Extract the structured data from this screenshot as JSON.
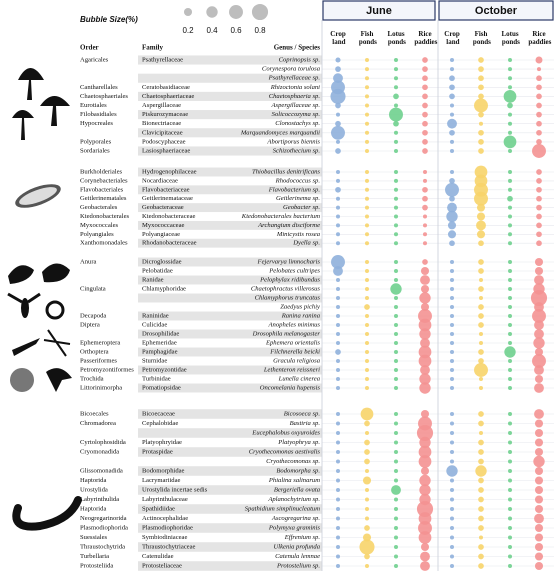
{
  "chart_data": {
    "type": "bubble",
    "legend": {
      "title": "Bubble Size(%)",
      "sizes": [
        0.2,
        0.4,
        0.6,
        0.8
      ],
      "color": "#bdbdbd"
    },
    "headers": {
      "order": "Order",
      "family": "Family",
      "species": "Genus / Species"
    },
    "months": [
      {
        "name": "June",
        "columns": [
          "Crop land",
          "Fish ponds",
          "Lotus ponds",
          "Rice paddies"
        ]
      },
      {
        "name": "October",
        "columns": [
          "Crop land",
          "Fish ponds",
          "Lotus ponds",
          "Rice paddies"
        ]
      }
    ],
    "colors": [
      "#8fb0dc",
      "#f7d46a",
      "#6fd08e",
      "#f49292"
    ],
    "groups": [
      {
        "rows": [
          {
            "order": "Agaricales",
            "family": "Psathyrellaceae",
            "species": "Coprinopsis sp.",
            "values": [
              0.08,
              0.05,
              0.05,
              0.1,
              0.05,
              0.1,
              0.05,
              0.15
            ]
          },
          {
            "order": null,
            "family": null,
            "species": "Corynespora torulosa",
            "values": [
              0.1,
              0.05,
              0.05,
              0.1,
              0.05,
              0.1,
              0.05,
              0.05
            ]
          },
          {
            "order": null,
            "family": null,
            "species": "Psathyrellaceae sp.",
            "values": [
              0.3,
              0.05,
              0.05,
              0.1,
              0.1,
              0.1,
              0.05,
              0.1
            ]
          },
          {
            "order": "Cantharellales",
            "family": "Ceratobasidiaceae",
            "species": "Rhizoctonia solani",
            "values": [
              0.6,
              0.05,
              0.05,
              0.1,
              0.1,
              0.1,
              0.05,
              0.1
            ]
          },
          {
            "order": "Chaetosphaeriales",
            "family": "Chaetosphaeriaceae",
            "species": "Chaetosphaeria sp.",
            "values": [
              0.7,
              0.05,
              0.1,
              0.1,
              0.1,
              0.1,
              0.5,
              0.1
            ]
          },
          {
            "order": "Eurotiales",
            "family": "Aspergillaceae",
            "species": "Aspergillaceae sp.",
            "values": [
              0.1,
              0.05,
              0.05,
              0.1,
              0.05,
              0.6,
              0.1,
              0.1
            ]
          },
          {
            "order": "Filobasidiales",
            "family": "Piskurozymaceae",
            "species": "Solicoccozyma sp.",
            "values": [
              0.05,
              0.05,
              0.6,
              0.1,
              0.05,
              0.1,
              0.05,
              0.1
            ]
          },
          {
            "order": "Hypocreales",
            "family": "Bionectriaceae",
            "species": "Clonostachys sp.",
            "values": [
              0.1,
              0.05,
              0.1,
              0.1,
              0.3,
              0.05,
              0.05,
              0.1
            ]
          },
          {
            "order": null,
            "family": "Clavicipitaceae",
            "species": "Marquandomyces marquandii",
            "values": [
              0.6,
              0.05,
              0.05,
              0.1,
              0.1,
              0.1,
              0.05,
              0.1
            ]
          },
          {
            "order": "Polyporales",
            "family": "Podoscyphaceae",
            "species": "Abortiporus biennis",
            "values": [
              0.05,
              0.05,
              0.05,
              0.1,
              0.05,
              0.1,
              0.5,
              0.1
            ]
          },
          {
            "order": "Sordariales",
            "family": "Lasiosphaeriaceae",
            "species": "Schizothecium sp.",
            "values": [
              0.1,
              0.05,
              0.05,
              0.1,
              0.05,
              0.1,
              0.05,
              0.6
            ]
          }
        ]
      },
      {
        "rows": [
          {
            "order": "Burkholderiales",
            "family": "Hydrogenophilaceae",
            "species": "Thiobacillus denitrificans",
            "values": [
              0.05,
              0.05,
              0.05,
              0.05,
              0.05,
              0.5,
              0.05,
              0.1
            ]
          },
          {
            "order": "Corynebacteriales",
            "family": "Nocardiaceae",
            "species": "Rhodococcus sp.",
            "values": [
              0.05,
              0.05,
              0.05,
              0.05,
              0.1,
              0.5,
              0.05,
              0.1
            ]
          },
          {
            "order": "Flavobacteriales",
            "family": "Flavobacteriaceae",
            "species": "Flavobacterium sp.",
            "values": [
              0.1,
              0.05,
              0.05,
              0.1,
              0.6,
              0.6,
              0.05,
              0.1
            ]
          },
          {
            "order": "Geitlerinematales",
            "family": "Geitlerinemataceae",
            "species": "Geitlerinema sp.",
            "values": [
              0.05,
              0.05,
              0.05,
              0.1,
              0.1,
              0.6,
              0.1,
              0.1
            ]
          },
          {
            "order": "Geobacterales",
            "family": "Geobacteraceae",
            "species": "Geobacter sp.",
            "values": [
              0.05,
              0.05,
              0.05,
              0.1,
              0.3,
              0.2,
              0.05,
              0.1
            ]
          },
          {
            "order": "Ktedonobacterales",
            "family": "Ktedonobacteraceae",
            "species": "Ktedonobacterales bacterium",
            "values": [
              0.05,
              0.05,
              0.05,
              0.05,
              0.4,
              0.2,
              0.05,
              0.1
            ]
          },
          {
            "order": "Myxococcales",
            "family": "Myxococcaceae",
            "species": "Archangium disciforme",
            "values": [
              0.05,
              0.05,
              0.05,
              0.05,
              0.2,
              0.3,
              0.05,
              0.1
            ]
          },
          {
            "order": "Polyangiales",
            "family": "Polyangiaceae",
            "species": "Minicystis rosea",
            "values": [
              0.05,
              0.05,
              0.05,
              0.05,
              0.2,
              0.2,
              0.05,
              0.1
            ]
          },
          {
            "order": "Xanthomonadales",
            "family": "Rhodanobacteraceae",
            "species": "Dyella sp.",
            "values": [
              0.05,
              0.05,
              0.05,
              0.05,
              0.1,
              0.1,
              0.05,
              0.1
            ]
          }
        ]
      },
      {
        "rows": [
          {
            "order": "Anura",
            "family": "Dicroglossidae",
            "species": "Fejervarya limnocharis",
            "values": [
              0.6,
              0.05,
              0.05,
              0.1,
              0.05,
              0.1,
              0.05,
              0.2
            ]
          },
          {
            "order": null,
            "family": "Pelobatidae",
            "species": "Pelobates cultripes",
            "values": [
              0.3,
              0.05,
              0.05,
              0.2,
              0.05,
              0.1,
              0.05,
              0.2
            ]
          },
          {
            "order": null,
            "family": "Ranidae",
            "species": "Pelophylax ridibundus",
            "values": [
              0.05,
              0.05,
              0.05,
              0.3,
              0.05,
              0.05,
              0.05,
              0.3
            ]
          },
          {
            "order": "Cingulata",
            "family": "Chlamyphoridae",
            "species": "Chaetophractus villerosus",
            "values": [
              0.05,
              0.05,
              0.4,
              0.2,
              0.05,
              0.1,
              0.05,
              0.4
            ]
          },
          {
            "order": null,
            "family": null,
            "species": "Chlamyphorus truncatus",
            "values": [
              0.05,
              0.05,
              0.05,
              0.4,
              0.05,
              0.05,
              0.05,
              0.8
            ]
          },
          {
            "order": null,
            "family": null,
            "species": "Zaedyus pichiy",
            "values": [
              0.05,
              0.1,
              0.05,
              0.2,
              0.05,
              0.1,
              0.05,
              0.3
            ]
          },
          {
            "order": "Decapoda",
            "family": "Raninidae",
            "species": "Ranina ranina",
            "values": [
              0.05,
              0.05,
              0.05,
              0.6,
              0.05,
              0.1,
              0.05,
              0.6
            ]
          },
          {
            "order": "Diptera",
            "family": "Culicidae",
            "species": "Anopheles minimus",
            "values": [
              0.05,
              0.05,
              0.05,
              0.5,
              0.05,
              0.1,
              0.05,
              0.3
            ]
          },
          {
            "order": null,
            "family": "Drosophilidae",
            "species": "Drosophila melanogaster",
            "values": [
              0.05,
              0.05,
              0.05,
              0.4,
              0.05,
              0.05,
              0.05,
              0.3
            ]
          },
          {
            "order": "Ephemeroptera",
            "family": "Ephemeridae",
            "species": "Ephemera orientalis",
            "values": [
              0.05,
              0.05,
              0.05,
              0.3,
              0.05,
              0.05,
              0.05,
              0.4
            ]
          },
          {
            "order": "Orthoptera",
            "family": "Pamphagidae",
            "species": "Filchnerella beicki",
            "values": [
              0.1,
              0.05,
              0.05,
              0.5,
              0.05,
              0.1,
              0.4,
              0.2
            ]
          },
          {
            "order": "Passeriformes",
            "family": "Sturnidae",
            "species": "Gracula religiosa",
            "values": [
              0.05,
              0.05,
              0.05,
              0.5,
              0.05,
              0.1,
              0.05,
              0.6
            ]
          },
          {
            "order": "Petromyzontiformes",
            "family": "Petromyzontidae",
            "species": "Lethenteron reissneri",
            "values": [
              0.05,
              0.05,
              0.05,
              0.3,
              0.05,
              0.6,
              0.05,
              0.3
            ]
          },
          {
            "order": "Trochida",
            "family": "Turbinidae",
            "species": "Lunella cinerea",
            "values": [
              0.05,
              0.05,
              0.05,
              0.4,
              0.05,
              0.05,
              0.05,
              0.2
            ]
          },
          {
            "order": "Littorinimorpha",
            "family": "Pomatiopsidae",
            "species": "Oncomelania hupensis",
            "values": [
              0.05,
              0.05,
              0.05,
              0.4,
              0.05,
              0.05,
              0.05,
              0.3
            ]
          }
        ]
      },
      {
        "rows": [
          {
            "order": "Bicoecales",
            "family": "Bicoecaceae",
            "species": "Bicosoeca sp.",
            "values": [
              0.05,
              0.5,
              0.05,
              0.2,
              0.05,
              0.1,
              0.05,
              0.3
            ]
          },
          {
            "order": "Chromadorea",
            "family": "Cephalobidae",
            "species": "Bastiria sp.",
            "values": [
              0.05,
              0.1,
              0.05,
              0.6,
              0.05,
              0.1,
              0.05,
              0.2
            ]
          },
          {
            "order": null,
            "family": null,
            "species": "Eucephalobus oxyuroides",
            "values": [
              0.05,
              0.05,
              0.05,
              0.8,
              0.05,
              0.05,
              0.05,
              0.2
            ]
          },
          {
            "order": "Cyrtolophosidida",
            "family": "Platyophryidae",
            "species": "Platyophrya sp.",
            "values": [
              0.05,
              0.1,
              0.05,
              0.4,
              0.05,
              0.1,
              0.05,
              0.2
            ]
          },
          {
            "order": "Cryomonadida",
            "family": "Protaspidae",
            "species": "Cryothecomonas aestivalis",
            "values": [
              0.05,
              0.1,
              0.05,
              0.5,
              0.05,
              0.1,
              0.05,
              0.2
            ]
          },
          {
            "order": null,
            "family": null,
            "species": "Cryothecomonas sp.",
            "values": [
              0.05,
              0.1,
              0.05,
              0.5,
              0.05,
              0.1,
              0.05,
              0.4
            ]
          },
          {
            "order": "Glissomonadida",
            "family": "Bodomorphidae",
            "species": "Bodomorpha sp.",
            "values": [
              0.05,
              0.05,
              0.05,
              0.2,
              0.4,
              0.4,
              0.05,
              0.2
            ]
          },
          {
            "order": "Haptorida",
            "family": "Lacrymariidae",
            "species": "Phialina salinarum",
            "values": [
              0.05,
              0.2,
              0.05,
              0.4,
              0.05,
              0.1,
              0.05,
              0.2
            ]
          },
          {
            "order": "Urostylida",
            "family": "Urostylida incertae sedis",
            "species": "Bergeriella ovata",
            "values": [
              0.05,
              0.05,
              0.3,
              0.4,
              0.05,
              0.1,
              0.05,
              0.2
            ]
          },
          {
            "order": "Labyrinthulida",
            "family": "Labyrinthulaceae",
            "species": "Aplanochytrium sp.",
            "values": [
              0.05,
              0.05,
              0.05,
              0.4,
              0.05,
              0.1,
              0.05,
              0.2
            ]
          },
          {
            "order": "Haptorida",
            "family": "Spathidiidae",
            "species": "Spathidium simplinucleatum",
            "values": [
              0.05,
              0.05,
              0.05,
              0.8,
              0.05,
              0.1,
              0.05,
              0.2
            ]
          },
          {
            "order": "Neogregarinorida",
            "family": "Actinocephalidae",
            "species": "Ascogregarina sp.",
            "values": [
              0.05,
              0.05,
              0.05,
              0.5,
              0.05,
              0.1,
              0.05,
              0.3
            ]
          },
          {
            "order": "Plasmodiophorida",
            "family": "Plasmodiophoridae",
            "species": "Polymyxa graminis",
            "values": [
              0.05,
              0.1,
              0.05,
              0.6,
              0.05,
              0.1,
              0.05,
              0.2
            ]
          },
          {
            "order": "Suessiales",
            "family": "Symbiodiniaceae",
            "species": "Effrenium sp.",
            "values": [
              0.05,
              0.2,
              0.05,
              0.5,
              0.05,
              0.05,
              0.05,
              0.2
            ]
          },
          {
            "order": "Thraustochytrida",
            "family": "Thraustochytriaceae",
            "species": "Ulkenia profunda",
            "values": [
              0.05,
              0.7,
              0.05,
              0.2,
              0.05,
              0.1,
              0.05,
              0.2
            ]
          },
          {
            "order": "Turbellaria",
            "family": "Catenulidae",
            "species": "Catenula lemnae",
            "values": [
              0.05,
              0.1,
              0.05,
              0.3,
              0.05,
              0.1,
              0.05,
              0.2
            ]
          },
          {
            "order": "Protosteliida",
            "family": "Protosteliaceae",
            "species": "Protostelium sp.",
            "values": [
              0.05,
              0.05,
              0.05,
              0.3,
              0.05,
              0.1,
              0.05,
              0.2
            ]
          }
        ]
      }
    ]
  }
}
